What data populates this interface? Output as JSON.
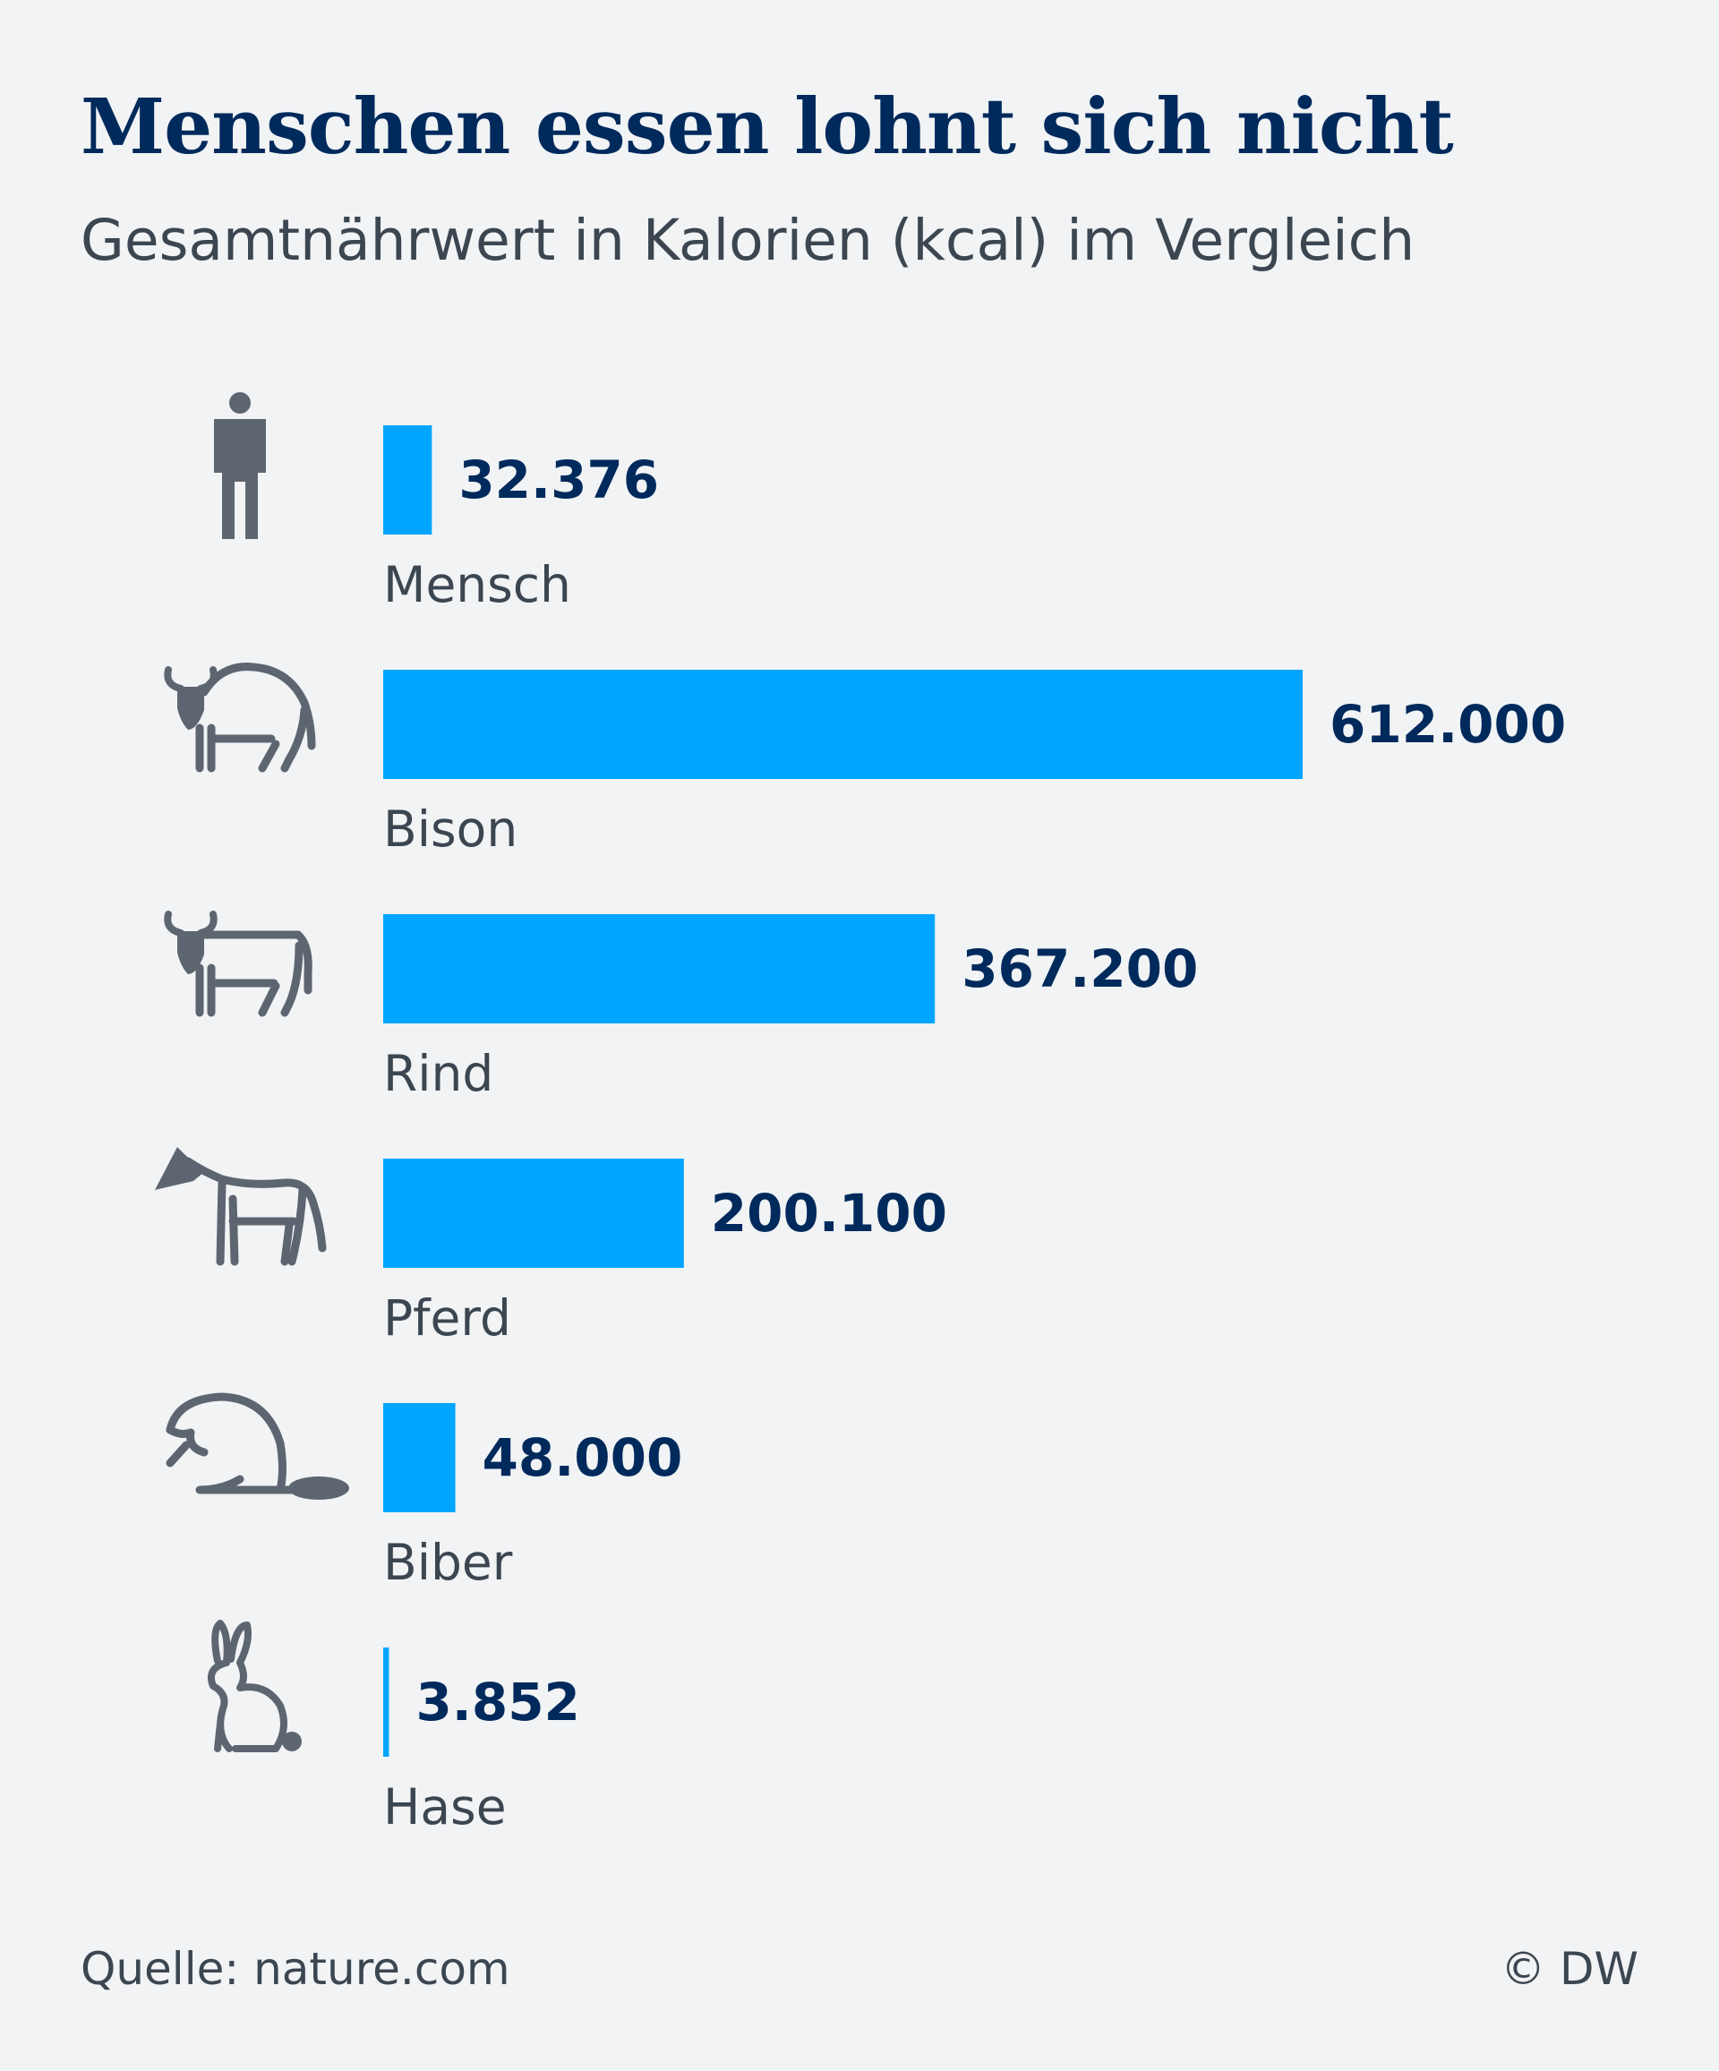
{
  "header": {
    "title": "Menschen essen lohnt sich nicht",
    "subtitle": "Gesamtnährwert in Kalorien (kcal) im Vergleich"
  },
  "footer": {
    "source": "Quelle: nature.com",
    "credit": "© DW"
  },
  "colors": {
    "bar": "#00a5ff",
    "value_text": "#002a5c",
    "label_text": "#3c4650",
    "icon": "#5d6670"
  },
  "chart_data": {
    "type": "bar",
    "orientation": "horizontal",
    "title": "Menschen essen lohnt sich nicht",
    "subtitle": "Gesamtnährwert in Kalorien (kcal) im Vergleich",
    "categories": [
      "Mensch",
      "Bison",
      "Rind",
      "Pferd",
      "Biber",
      "Hase"
    ],
    "values": [
      32376,
      612000,
      367200,
      200100,
      48000,
      3852
    ],
    "value_labels": [
      "32.376",
      "612.000",
      "367.200",
      "200.100",
      "48.000",
      "3.852"
    ],
    "icons": [
      "person-icon",
      "bison-icon",
      "cow-icon",
      "horse-icon",
      "beaver-icon",
      "rabbit-icon"
    ],
    "xlim": [
      0,
      612000
    ],
    "grid": false,
    "legend": "none"
  }
}
